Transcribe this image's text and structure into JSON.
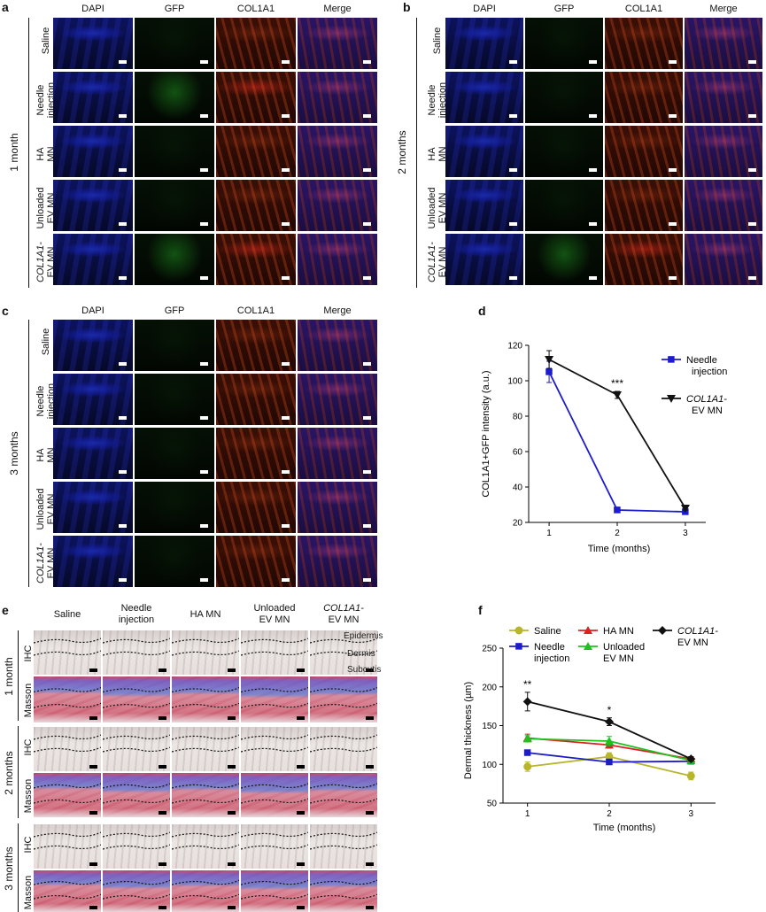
{
  "panels": {
    "a": {
      "letter": "a",
      "group": "1 month"
    },
    "b": {
      "letter": "b",
      "group": "2 months"
    },
    "c": {
      "letter": "c",
      "group": "3 months"
    },
    "d": {
      "letter": "d"
    },
    "e": {
      "letter": "e"
    },
    "f": {
      "letter": "f"
    }
  },
  "fluor_columns": [
    "DAPI",
    "GFP",
    "COL1A1",
    "Merge"
  ],
  "fluor_rows": [
    {
      "l1": "Saline",
      "l2": ""
    },
    {
      "l1": "Needle",
      "l2": "injection"
    },
    {
      "l1": "HA",
      "l2": "MN"
    },
    {
      "l1": "Unloaded",
      "l2": "EV MN"
    },
    {
      "l1": "COL1A1-",
      "l2": "EV MN"
    }
  ],
  "histo_columns": [
    {
      "l1": "Saline",
      "l2": ""
    },
    {
      "l1": "Needle",
      "l2": "injection"
    },
    {
      "l1": "HA MN",
      "l2": ""
    },
    {
      "l1": "Unloaded",
      "l2": "EV MN"
    },
    {
      "l1": "COL1A1-",
      "l2": "EV MN"
    }
  ],
  "histo_groups": [
    "1 month",
    "2 months",
    "3 months"
  ],
  "histo_stains": [
    "IHC",
    "Masson"
  ],
  "histo_layers": [
    "Epidermis",
    "Dermis",
    "Subcutis"
  ],
  "colors": {
    "dapi": "#1a2aa8",
    "gfp": "#0f3a10",
    "col": "#6b2008",
    "needle": "#1c1ccc",
    "col1a1": "#111111",
    "saline": "#b8b62a",
    "ha": "#e02020",
    "unloaded": "#20c020"
  },
  "chart_data": [
    {
      "type": "line",
      "xlabel": "Time (months)",
      "ylabel": "COL1A1+GFP intensity (a.u.)",
      "x": [
        1,
        2,
        3
      ],
      "xticks": [
        "1",
        "2",
        "3"
      ],
      "yticks": [
        "20",
        "40",
        "60",
        "80",
        "100",
        "120"
      ],
      "ylim": [
        20,
        120
      ],
      "legend": "top-right",
      "series": [
        {
          "name1": "Needle",
          "name2": "injection",
          "values": [
            105,
            27,
            26
          ],
          "err": [
            6,
            1,
            1
          ]
        },
        {
          "name1": "COL1A1-",
          "name2": "EV MN",
          "values": [
            112,
            92,
            28
          ],
          "err": [
            5,
            2,
            1
          ]
        }
      ],
      "annotations": [
        {
          "x": 2,
          "text": "***"
        }
      ]
    },
    {
      "type": "line",
      "xlabel": "Time (months)",
      "ylabel": "Dermal thickness (µm)",
      "x": [
        1,
        2,
        3
      ],
      "xticks": [
        "1",
        "2",
        "3"
      ],
      "yticks": [
        "50",
        "100",
        "150",
        "200",
        "250"
      ],
      "ylim": [
        50,
        250
      ],
      "legend": "top",
      "series": [
        {
          "name1": "Saline",
          "name2": "",
          "values": [
            97,
            110,
            85
          ],
          "err": [
            6,
            5,
            5
          ]
        },
        {
          "name1": "Needle",
          "name2": "injection",
          "values": [
            115,
            103,
            104
          ],
          "err": [
            3,
            3,
            3
          ]
        },
        {
          "name1": "HA MN",
          "name2": "",
          "values": [
            134,
            125,
            107
          ],
          "err": [
            5,
            4,
            3
          ]
        },
        {
          "name1": "Unloaded",
          "name2": "EV MN",
          "values": [
            133,
            130,
            105
          ],
          "err": [
            4,
            6,
            3
          ]
        },
        {
          "name1": "COL1A1-",
          "name2": "EV MN",
          "values": [
            181,
            155,
            107
          ],
          "err": [
            12,
            5,
            3
          ]
        }
      ],
      "annotations": [
        {
          "x": 1,
          "text": "**"
        },
        {
          "x": 2,
          "text": "*"
        }
      ]
    }
  ]
}
